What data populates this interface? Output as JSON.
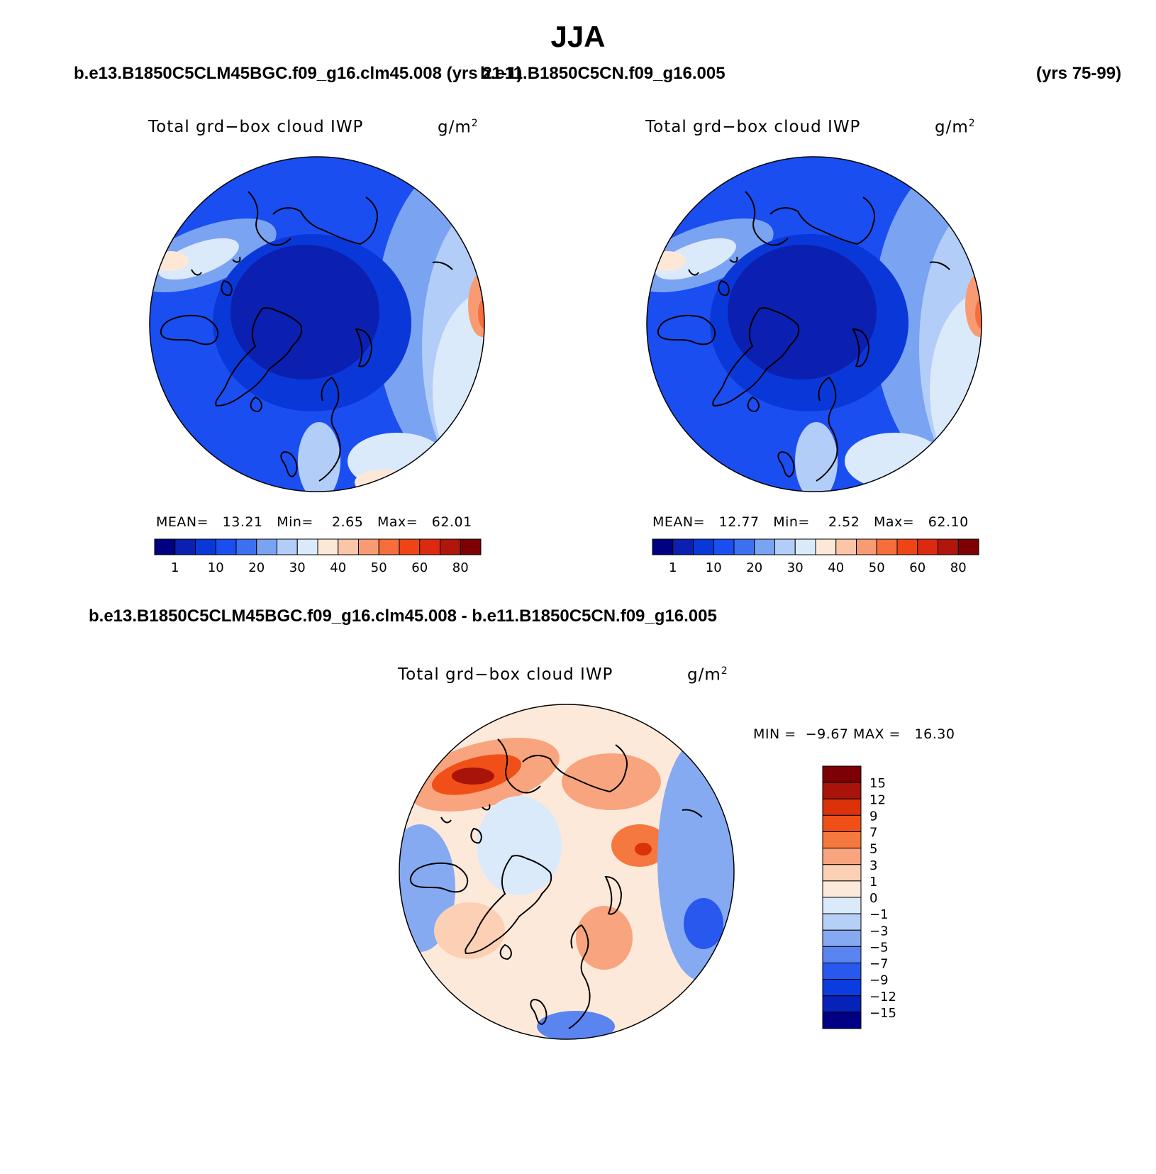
{
  "title": "JJA",
  "case_left": "b.e13.B1850C5CLM45BGC.f09_g16.clm45.008 (yrs 21-1)",
  "case_right": "b.e11.B1850C5CN.f09_g16.005",
  "years_right": "(yrs 75-99)",
  "diff_heading": "b.e13.B1850C5CLM45BGC.f09_g16.clm45.008 - b.e11.B1850C5CN.f09_g16.005",
  "colors": {
    "abs_scale": [
      "#000080",
      "#0b1fb0",
      "#0a38d8",
      "#1a4ef0",
      "#3d70f0",
      "#7aa3f2",
      "#b2cdf7",
      "#dbeafb",
      "#fde8d8",
      "#fbc5a8",
      "#f99b72",
      "#f56e3c",
      "#ee4416",
      "#dc2a10",
      "#b0160c",
      "#7c0004"
    ],
    "diff_scale": [
      "#7c0004",
      "#a8130a",
      "#dc320a",
      "#f05018",
      "#f5783e",
      "#f8a47e",
      "#fcd0b4",
      "#fde9da",
      "#dbeafb",
      "#b6cff6",
      "#86aaf1",
      "#5a84f0",
      "#2858ee",
      "#0a3ce0",
      "#0722b8",
      "#000084"
    ],
    "coast": "#000000"
  },
  "panels": [
    {
      "id": "model",
      "plot_title": "Total grd−box cloud IWP",
      "units_base": "g/m",
      "units_exp": "2",
      "mean_label": "MEAN=",
      "mean": "13.21",
      "min_label": "Min=",
      "min": "2.65",
      "max_label": "Max=",
      "max": "62.01"
    },
    {
      "id": "control",
      "plot_title": "Total grd−box cloud IWP",
      "units_base": "g/m",
      "units_exp": "2",
      "mean_label": "MEAN=",
      "mean": "12.77",
      "min_label": "Min=",
      "min": "2.52",
      "max_label": "Max=",
      "max": "62.10"
    }
  ],
  "diff_panel": {
    "plot_title": "Total grd−box cloud IWP",
    "units_base": "g/m",
    "units_exp": "2",
    "min_label": "MIN =",
    "min": "−9.67",
    "max_label": "MAX =",
    "max": "16.30"
  },
  "chart_data": [
    {
      "type": "heatmap",
      "projection": "north-polar-stereographic",
      "title": "Total grd−box cloud IWP",
      "units": "g/m2",
      "case": "b.e13.B1850C5CLM45BGC.f09_g16.clm45.008",
      "season": "JJA",
      "mean": 13.21,
      "min": 2.65,
      "max": 62.01,
      "colorbar_tick_labels": [
        "1",
        "10",
        "20",
        "30",
        "40",
        "50",
        "60",
        "80"
      ],
      "colorbar_levels": 16
    },
    {
      "type": "heatmap",
      "projection": "north-polar-stereographic",
      "title": "Total grd−box cloud IWP",
      "units": "g/m2",
      "case": "b.e11.B1850C5CN.f09_g16.005",
      "season": "JJA",
      "mean": 12.77,
      "min": 2.52,
      "max": 62.1,
      "colorbar_tick_labels": [
        "1",
        "10",
        "20",
        "30",
        "40",
        "50",
        "60",
        "80"
      ],
      "colorbar_levels": 16
    },
    {
      "type": "heatmap",
      "projection": "north-polar-stereographic",
      "title": "Total grd−box cloud IWP",
      "units": "g/m2",
      "case": "difference",
      "min": -9.67,
      "max": 16.3,
      "colorbar_tick_labels": [
        "15",
        "12",
        "9",
        "7",
        "5",
        "3",
        "1",
        "0",
        "−1",
        "−3",
        "−5",
        "−7",
        "−9",
        "−12",
        "−15"
      ],
      "colorbar_levels": 16
    }
  ]
}
